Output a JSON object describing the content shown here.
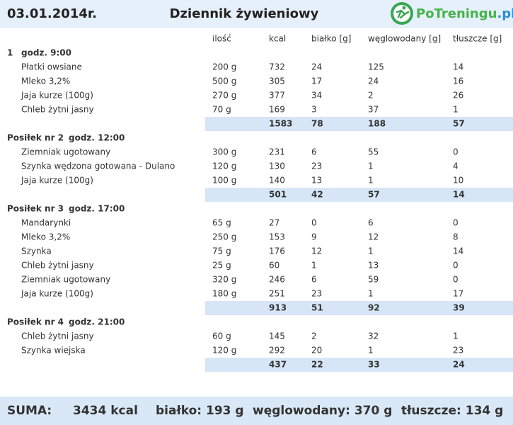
{
  "header": {
    "date": "03.01.2014r.",
    "title": "Dziennik żywieniowy",
    "logo_name": "PoTreningu",
    "logo_domain": ".pl"
  },
  "columns": [
    "ilość",
    "kcal",
    "białko [g]",
    "węglowodany [g]",
    "tłuszcze [g]"
  ],
  "meals": [
    {
      "name": "1",
      "time": "godz. 9:00",
      "items": [
        [
          "Płatki owsiane",
          "200 g",
          732,
          24,
          125,
          14
        ],
        [
          "Mleko  3,2%",
          "500 g",
          305,
          17,
          24,
          16
        ],
        [
          "Jaja kurze (100g)",
          "270 g",
          377,
          34,
          2,
          26
        ],
        [
          "Chleb żytni jasny",
          "70 g",
          169,
          3,
          37,
          1
        ]
      ],
      "total": [
        1583,
        78,
        188,
        57
      ]
    },
    {
      "name": "Posiłek nr 2",
      "time": "godz. 12:00",
      "items": [
        [
          "Ziemniak ugotowany",
          "300 g",
          231,
          6,
          55,
          0
        ],
        [
          "Szynka wędzona gotowana - Dulano",
          "120 g",
          130,
          23,
          1,
          4
        ],
        [
          "Jaja kurze (100g)",
          "100 g",
          140,
          13,
          1,
          10
        ]
      ],
      "total": [
        501,
        42,
        57,
        14
      ]
    },
    {
      "name": "Posiłek nr 3",
      "time": "godz. 17:00",
      "items": [
        [
          "Mandarynki",
          "65 g",
          27,
          0,
          6,
          0
        ],
        [
          "Mleko  3,2%",
          "250 g",
          153,
          9,
          12,
          8
        ],
        [
          "Szynka",
          "75 g",
          176,
          12,
          1,
          14
        ],
        [
          "Chleb żytni jasny",
          "25 g",
          60,
          1,
          13,
          0
        ],
        [
          "Ziemniak ugotowany",
          "320 g",
          246,
          6,
          59,
          0
        ],
        [
          "Jaja kurze (100g)",
          "180 g",
          251,
          23,
          1,
          17
        ]
      ],
      "total": [
        913,
        51,
        92,
        39
      ]
    },
    {
      "name": "Posiłek nr 4",
      "time": "godz. 21:00",
      "items": [
        [
          "Chleb żytni jasny",
          "60 g",
          145,
          2,
          32,
          1
        ],
        [
          "Szynka wiejska",
          "120 g",
          292,
          20,
          1,
          23
        ]
      ],
      "total": [
        437,
        22,
        33,
        24
      ]
    }
  ],
  "summary": {
    "label": "SUMA:",
    "kcal": "3434 kcal",
    "protein": "białko: 193 g",
    "carbs": "węglowodany: 370 g",
    "fat": "tłuszcze: 134 g"
  }
}
